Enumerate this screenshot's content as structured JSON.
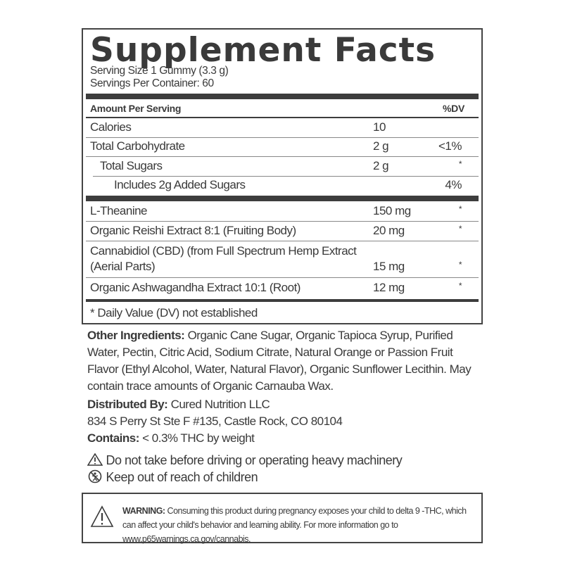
{
  "title": "Supplement Facts",
  "serving_size": "Serving Size 1 Gummy (3.3 g)",
  "servings_per_container": "Servings Per Container: 60",
  "header": {
    "amount": "Amount Per Serving",
    "dv": "%DV"
  },
  "rows": [
    {
      "name": "Calories",
      "amount": "10",
      "dv": ""
    },
    {
      "name": "Total Carbohydrate",
      "amount": "2 g",
      "dv": "<1%"
    },
    {
      "name": "Total Sugars",
      "amount": "2 g",
      "dv": "*"
    },
    {
      "name": "Includes 2g Added Sugars",
      "amount": "",
      "dv": "4%"
    },
    {
      "name": "L-Theanine",
      "amount": "150 mg",
      "dv": "*"
    },
    {
      "name": "Organic Reishi Extract 8:1 (Fruiting Body)",
      "amount": "20 mg",
      "dv": "*"
    },
    {
      "name": "Cannabidiol (CBD) (from Full Spectrum Hemp Extract",
      "name2": "(Aerial Parts)",
      "amount": "15 mg",
      "dv": "*"
    },
    {
      "name": "Organic Ashwagandha Extract 10:1 (Root)",
      "amount": "12 mg",
      "dv": "*"
    }
  ],
  "footnote": "* Daily Value (DV) not established",
  "other_ingredients": {
    "label": "Other Ingredients:",
    "text": " Organic Cane Sugar, Organic Tapioca Syrup, Purified Water, Pectin, Citric Acid, Sodium Citrate, Natural Orange or Passion Fruit Flavor (Ethyl Alcohol,  Water,  Natural Flavor), Organic Sunflower Lecithin. May contain trace amounts of Organic Carnauba Wax."
  },
  "distributed": {
    "label": "Distributed By:",
    "text": " Cured Nutrition LLC",
    "address": "834 S Perry St Ste F #135, Castle Rock, CO 80104"
  },
  "contains": {
    "label": "Contains:",
    "text": " < 0.3% THC by weight"
  },
  "cautions": [
    {
      "icon": "warning-triangle-icon",
      "text": "Do not take before driving or operating heavy machinery"
    },
    {
      "icon": "no-children-icon",
      "text": "Keep out of reach of children"
    }
  ],
  "warning": {
    "label": "WARNING:",
    "text": " Consuming this product during pregnancy exposes your child to delta 9 -THC, which can affect your child's behavior and learning ability. For more information go to www.p65warnings.ca.gov/cannabis."
  }
}
